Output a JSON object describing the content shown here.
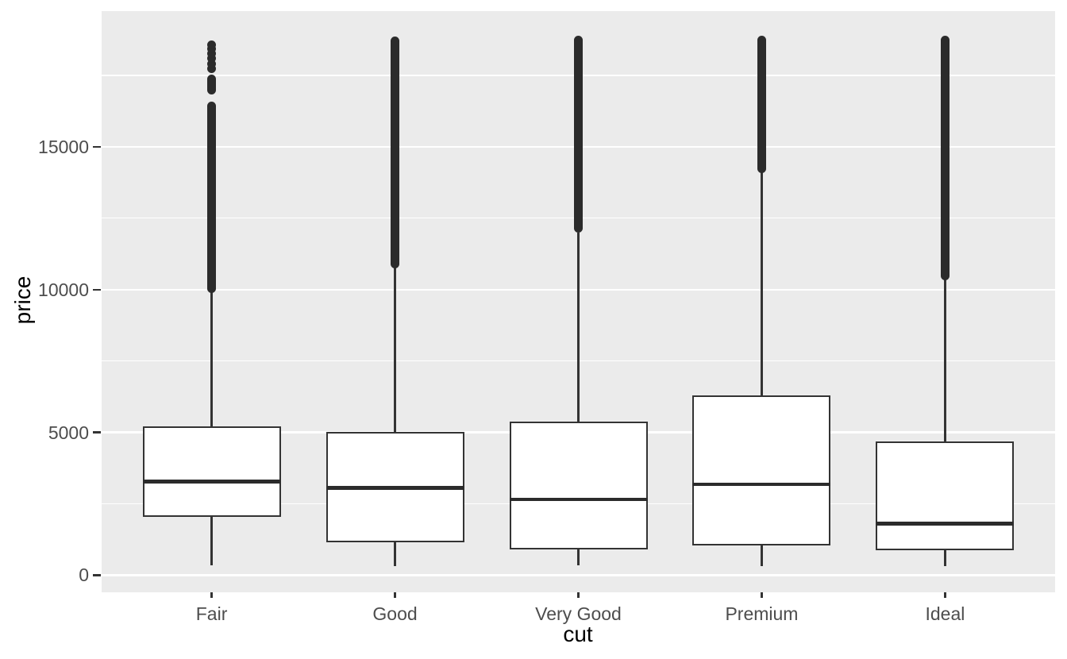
{
  "chart_data": {
    "type": "boxplot",
    "title": "",
    "xlabel": "cut",
    "ylabel": "price",
    "categories": [
      "Fair",
      "Good",
      "Very Good",
      "Premium",
      "Ideal"
    ],
    "y_major_ticks": [
      0,
      5000,
      10000,
      15000
    ],
    "y_minor_ticks": [
      2500,
      7500,
      12500,
      17500
    ],
    "ylim": [
      -599,
      19748
    ],
    "legend": "none",
    "grid": "on",
    "series": [
      {
        "cut": "Fair",
        "whisker_low": 337,
        "q1": 2050,
        "median": 3282,
        "q3": 5206,
        "whisker_high": 9940,
        "outlier_runs": [
          [
            10030,
            16420
          ],
          [
            16980,
            17360
          ]
        ],
        "outlier_dots": [
          17720,
          17910,
          18090,
          18270,
          18430,
          18565
        ],
        "max_outlier": 18574
      },
      {
        "cut": "Good",
        "whisker_low": 327,
        "q1": 1145,
        "median": 3051,
        "q3": 5028,
        "whisker_high": 10780,
        "outlier_runs": [
          [
            10900,
            18700
          ]
        ],
        "outlier_dots": [],
        "max_outlier": 18788
      },
      {
        "cut": "Very Good",
        "whisker_low": 336,
        "q1": 912,
        "median": 2648,
        "q3": 5373,
        "whisker_high": 11980,
        "outlier_runs": [
          [
            12150,
            18730
          ]
        ],
        "outlier_dots": [],
        "max_outlier": 18818
      },
      {
        "cut": "Premium",
        "whisker_low": 326,
        "q1": 1046,
        "median": 3185,
        "q3": 6296,
        "whisker_high": 14100,
        "outlier_runs": [
          [
            14230,
            18740
          ]
        ],
        "outlier_dots": [],
        "max_outlier": 18823
      },
      {
        "cut": "Ideal",
        "whisker_low": 326,
        "q1": 878,
        "median": 1810,
        "q3": 4679,
        "whisker_high": 10340,
        "outlier_runs": [
          [
            10480,
            18720
          ]
        ],
        "outlier_dots": [],
        "max_outlier": 18806
      }
    ],
    "style": {
      "panel_bg": "#EBEBEB",
      "grid_color": "#FFFFFF",
      "box_fill": "#FFFFFF",
      "box_stroke": "#333333",
      "outlier_color": "#2B2B2B",
      "tick_label_color": "#4D4D4D",
      "axis_title_color": "#000000"
    }
  }
}
